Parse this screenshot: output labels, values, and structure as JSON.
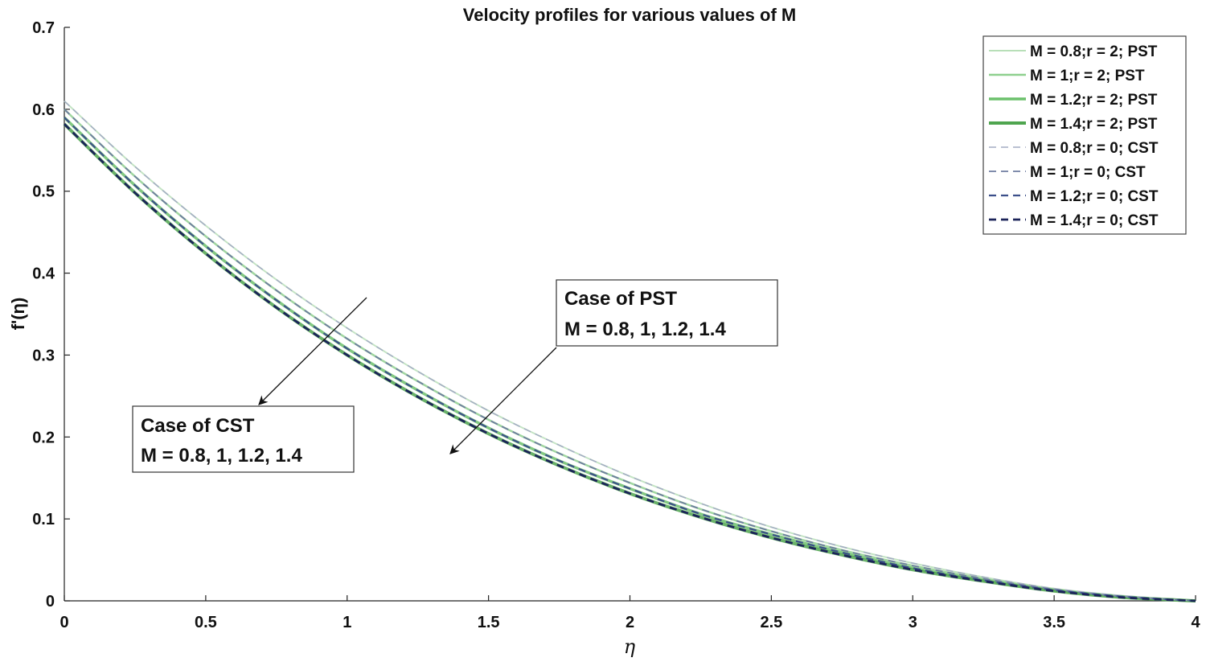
{
  "chart_data": {
    "type": "line",
    "title": "Velocity profiles for various values of M",
    "xlabel": "η",
    "ylabel": "f'(η)",
    "xlim": [
      0,
      4
    ],
    "ylim": [
      0,
      0.7
    ],
    "xticks": [
      "0",
      "0.5",
      "1",
      "1.5",
      "2",
      "2.5",
      "3",
      "3.5",
      "4"
    ],
    "yticks": [
      "0",
      "0.1",
      "0.2",
      "0.3",
      "0.4",
      "0.5",
      "0.6",
      "0.7"
    ],
    "grid": false,
    "legend_position": "top-right",
    "x": [
      0,
      0.25,
      0.5,
      0.75,
      1.0,
      1.25,
      1.5,
      1.75,
      2.0,
      2.25,
      2.5,
      2.75,
      3.0,
      3.25,
      3.5,
      3.75,
      4.0
    ],
    "series": [
      {
        "name": "M = 0.8;r = 2; PST",
        "color": "#b8dfb8",
        "style": "solid",
        "width": 2,
        "values": [
          0.61,
          0.53,
          0.458,
          0.392,
          0.333,
          0.28,
          0.232,
          0.19,
          0.152,
          0.119,
          0.09,
          0.066,
          0.046,
          0.029,
          0.015,
          0.006,
          0.0
        ]
      },
      {
        "name": "M = 1;r = 2; PST",
        "color": "#8fd08f",
        "style": "solid",
        "width": 2.5,
        "values": [
          0.6,
          0.518,
          0.445,
          0.379,
          0.32,
          0.268,
          0.221,
          0.18,
          0.144,
          0.112,
          0.085,
          0.062,
          0.043,
          0.027,
          0.014,
          0.005,
          0.0
        ]
      },
      {
        "name": "M = 1.2;r = 2; PST",
        "color": "#6cc06c",
        "style": "solid",
        "width": 3.5,
        "values": [
          0.59,
          0.507,
          0.433,
          0.367,
          0.308,
          0.257,
          0.211,
          0.171,
          0.137,
          0.106,
          0.081,
          0.059,
          0.04,
          0.025,
          0.013,
          0.005,
          0.0
        ]
      },
      {
        "name": "M = 1.4;r = 2; PST",
        "color": "#4fa54f",
        "style": "solid",
        "width": 4,
        "values": [
          0.582,
          0.498,
          0.424,
          0.358,
          0.3,
          0.249,
          0.204,
          0.165,
          0.131,
          0.102,
          0.077,
          0.056,
          0.038,
          0.024,
          0.012,
          0.004,
          0.0
        ]
      },
      {
        "name": "M = 0.8;r = 0; CST",
        "color": "#a4acc4",
        "style": "dashed",
        "width": 1.5,
        "values": [
          0.61,
          0.53,
          0.458,
          0.392,
          0.333,
          0.28,
          0.232,
          0.19,
          0.152,
          0.119,
          0.09,
          0.066,
          0.046,
          0.029,
          0.015,
          0.006,
          0.0
        ]
      },
      {
        "name": "M = 1;r = 0; CST",
        "color": "#6e7ca0",
        "style": "dashed",
        "width": 1.8,
        "values": [
          0.6,
          0.518,
          0.445,
          0.379,
          0.32,
          0.268,
          0.221,
          0.18,
          0.144,
          0.112,
          0.085,
          0.062,
          0.043,
          0.027,
          0.014,
          0.005,
          0.0
        ]
      },
      {
        "name": "M = 1.2;r = 0; CST",
        "color": "#3c4f8a",
        "style": "dashed",
        "width": 2.2,
        "values": [
          0.59,
          0.507,
          0.433,
          0.367,
          0.308,
          0.257,
          0.211,
          0.171,
          0.137,
          0.106,
          0.081,
          0.059,
          0.04,
          0.025,
          0.013,
          0.005,
          0.0
        ]
      },
      {
        "name": "M = 1.4;r = 0; CST",
        "color": "#1b2359",
        "style": "dashed",
        "width": 2.8,
        "values": [
          0.582,
          0.498,
          0.424,
          0.358,
          0.3,
          0.249,
          0.204,
          0.165,
          0.131,
          0.102,
          0.077,
          0.056,
          0.038,
          0.024,
          0.012,
          0.004,
          0.0
        ]
      }
    ],
    "annotations": [
      {
        "line1": "Case of PST",
        "line2": "M = 0.8, 1, 1.2, 1.4"
      },
      {
        "line1": "Case of CST",
        "line2": "M = 0.8, 1, 1.2, 1.4"
      }
    ]
  }
}
